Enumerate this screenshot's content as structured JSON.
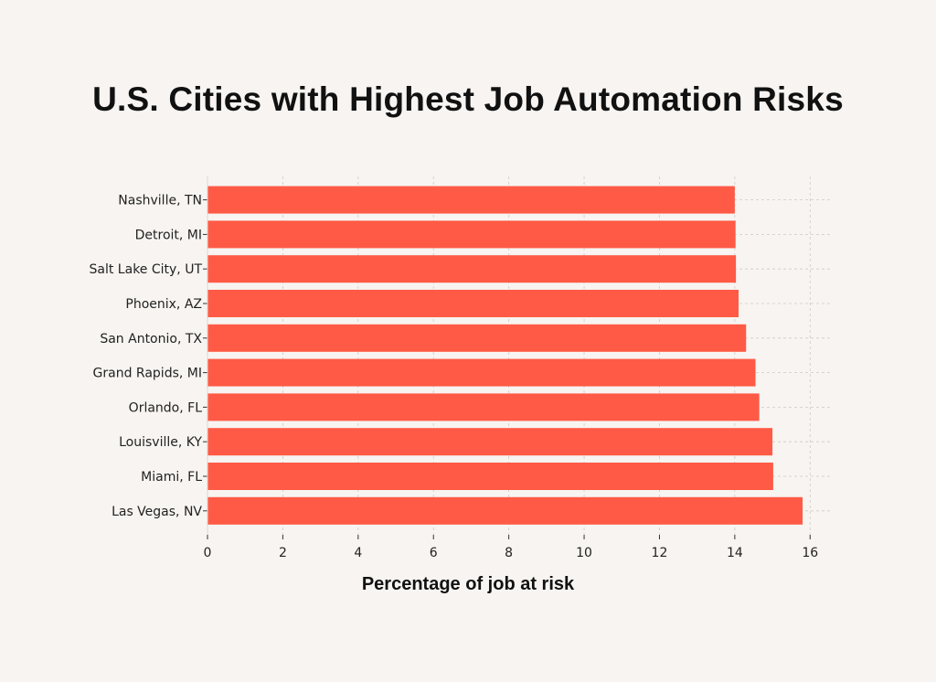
{
  "chart_data": {
    "type": "bar",
    "orientation": "horizontal",
    "title": "U.S. Cities with Highest Job Automation Risks",
    "xlabel": "Percentage of job at risk",
    "ylabel": "",
    "categories": [
      "Nashville, TN",
      "Detroit, MI",
      "Salt Lake City, UT",
      "Phoenix, AZ",
      "San Antonio, TX",
      "Grand Rapids, MI",
      "Orlando, FL",
      "Louisville, KY",
      "Miami, FL",
      "Las Vegas, NV"
    ],
    "values": [
      14.0,
      14.02,
      14.03,
      14.1,
      14.3,
      14.55,
      14.65,
      15.0,
      15.02,
      15.8
    ],
    "xlim": [
      0,
      16.6
    ],
    "xticks": [
      "0",
      "2",
      "4",
      "6",
      "8",
      "10",
      "12",
      "14",
      "16"
    ],
    "grid": true,
    "bar_color": "#ff5a45"
  }
}
